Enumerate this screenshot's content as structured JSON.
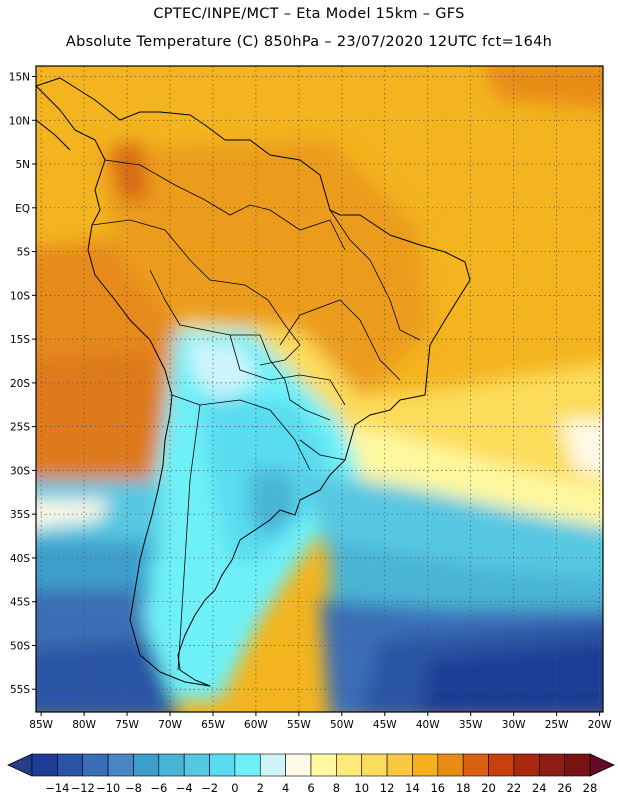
{
  "header": {
    "line1": "CPTEC/INPE/MCT –  Eta Model 15km – GFS",
    "line2": "Absolute Temperature (C) 850hPa – 23/07/2020 12UTC fct=164h"
  },
  "map": {
    "lat_labels": [
      "15N",
      "10N",
      "5N",
      "EQ",
      "5S",
      "10S",
      "15S",
      "20S",
      "25S",
      "30S",
      "35S",
      "40S",
      "45S",
      "50S",
      "55S"
    ],
    "lon_labels": [
      "85W",
      "80W",
      "75W",
      "70W",
      "65W",
      "60W",
      "55W",
      "50W",
      "45W",
      "40W",
      "35W",
      "30W",
      "25W",
      "20W"
    ],
    "lat_values": [
      15,
      10,
      5,
      0,
      -5,
      -10,
      -15,
      -20,
      -25,
      -30,
      -35,
      -40,
      -45,
      -50,
      -55
    ],
    "lon_values": [
      -85,
      -80,
      -75,
      -70,
      -65,
      -60,
      -55,
      -50,
      -45,
      -40,
      -35,
      -30,
      -25,
      -20
    ],
    "extent": {
      "lon_min": -85.6,
      "lon_max": -19.6,
      "lat_min": -57.6,
      "lat_max": 16.2
    }
  },
  "colorbar": {
    "labels": [
      "-14",
      "-12",
      "-10",
      "-8",
      "-6",
      "-4",
      "-2",
      "0",
      "2",
      "4",
      "6",
      "8",
      "10",
      "12",
      "14",
      "16",
      "18",
      "20",
      "22",
      "24",
      "26",
      "28"
    ],
    "under_color": "#283c8c",
    "over_color": "#640a28",
    "colors": [
      "#1e3c96",
      "#2a55a6",
      "#3a6eb6",
      "#4a86c4",
      "#3c9ecc",
      "#48b4d6",
      "#56c8e2",
      "#5adcf0",
      "#6ef0f8",
      "#cef4fa",
      "#fffae6",
      "#fef8a0",
      "#fdea78",
      "#fcdc5a",
      "#f8c840",
      "#f4b018",
      "#e88c14",
      "#dc6010",
      "#c84010",
      "#a82810",
      "#8c1e14",
      "#7a1414"
    ]
  }
}
